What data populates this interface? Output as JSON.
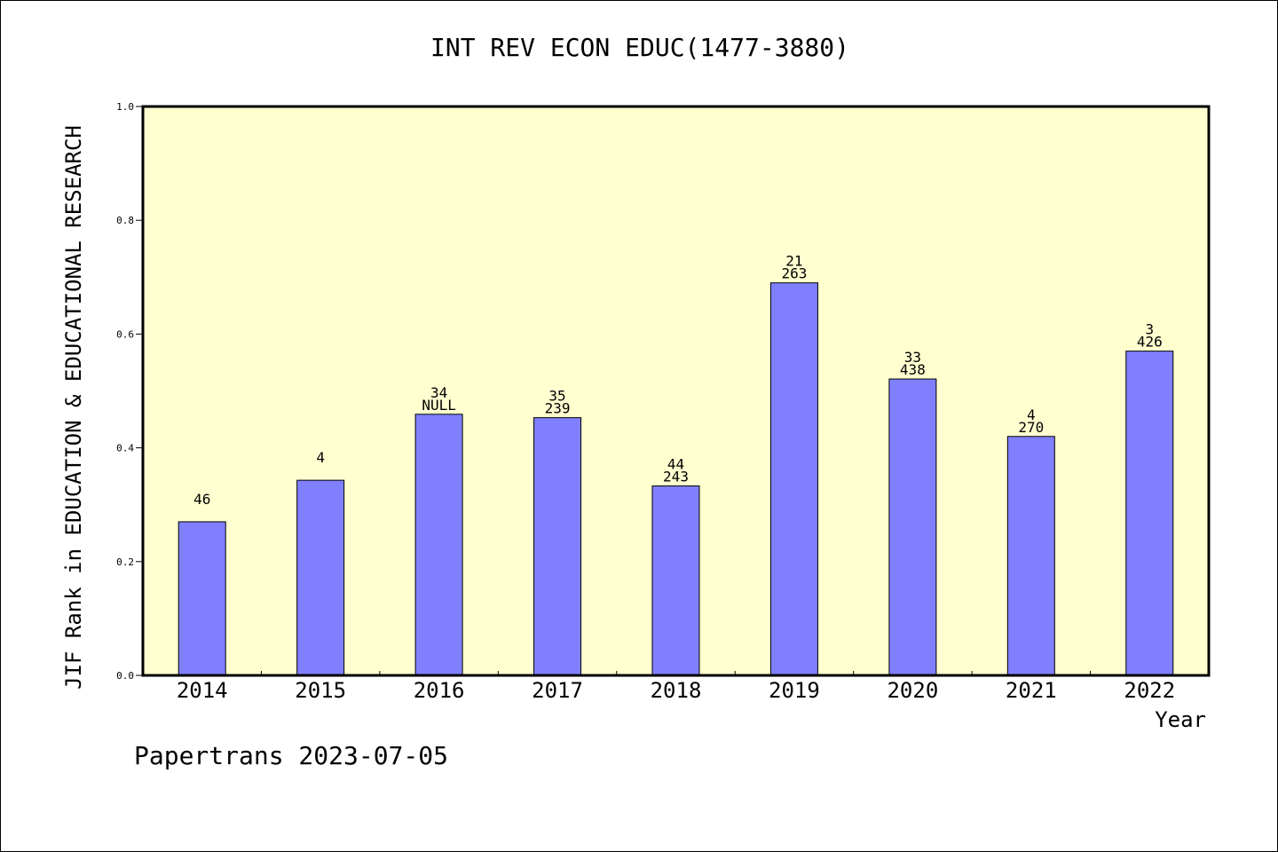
{
  "chart_data": {
    "type": "bar",
    "title": "INT REV ECON EDUC(1477-3880)",
    "xlabel": "Year",
    "ylabel": "JIF Rank in EDUCATION & EDUCATIONAL RESEARCH",
    "ylim": [
      0,
      1.0
    ],
    "yticks": [
      "0.0",
      "0.2",
      "0.4",
      "0.6",
      "0.8",
      "1.0"
    ],
    "categories": [
      "2014",
      "2015",
      "2016",
      "2017",
      "2018",
      "2019",
      "2020",
      "2021",
      "2022"
    ],
    "values": [
      0.27,
      0.343,
      0.459,
      0.453,
      0.333,
      0.69,
      0.521,
      0.42,
      0.57
    ],
    "bar_labels_top": [
      "46",
      "4",
      "34",
      "35",
      "44",
      "21",
      "33",
      "4",
      "3"
    ],
    "bar_labels_bottom": [
      "",
      "",
      "NULL",
      "239",
      "243",
      "263",
      "438",
      "270",
      "426"
    ],
    "colors": {
      "plot_bg": "#ffffd0",
      "bar": "#8080ff",
      "axis": "#000000"
    },
    "grid": false,
    "legend": "none"
  },
  "footer": {
    "note": "Papertrans 2023-07-05"
  }
}
